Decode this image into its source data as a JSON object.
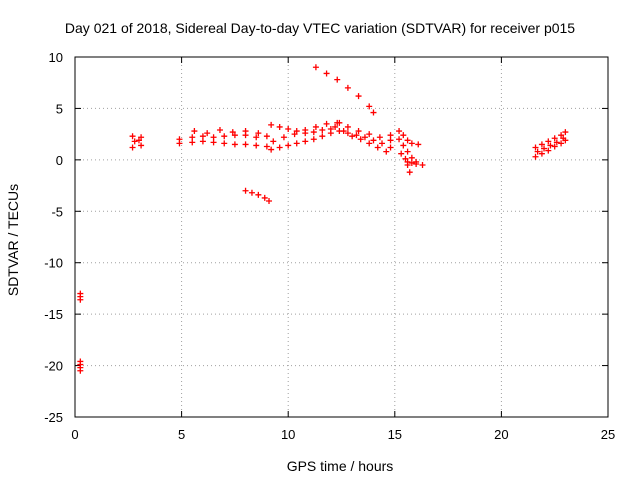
{
  "chart_data": {
    "type": "scatter",
    "title": "Day 021 of 2018, Sidereal Day-to-day VTEC variation (SDTVAR) for receiver p015",
    "xlabel": "GPS time / hours",
    "ylabel": "SDTVAR / TECUs",
    "xlim": [
      0,
      25
    ],
    "ylim": [
      -25,
      10
    ],
    "x_ticks": [
      0,
      5,
      10,
      15,
      20,
      25
    ],
    "y_ticks": [
      -25,
      -20,
      -15,
      -10,
      -5,
      0,
      5,
      10
    ],
    "x_tick_labels": [
      "0",
      "5",
      "10",
      "15",
      "20",
      "25"
    ],
    "y_tick_labels": [
      "-25",
      "-20",
      "-15",
      "-10",
      "-5",
      "0",
      "5",
      "10"
    ],
    "grid": true,
    "grid_style": "dotted",
    "legend": "none",
    "marker": "plus",
    "color": "#ff0000",
    "tracks": [
      {
        "points": [
          [
            0.25,
            -13.0
          ],
          [
            0.25,
            -13.3
          ],
          [
            0.25,
            -13.6
          ]
        ]
      },
      {
        "points": [
          [
            0.25,
            -19.6
          ],
          [
            0.25,
            -19.9
          ],
          [
            0.25,
            -20.2
          ],
          [
            0.25,
            -20.5
          ]
        ]
      },
      {
        "points": [
          [
            2.7,
            1.2
          ],
          [
            2.7,
            2.3
          ],
          [
            3.1,
            2.2
          ],
          [
            3.1,
            1.4
          ],
          [
            2.8,
            1.8
          ],
          [
            3.0,
            1.9
          ]
        ]
      },
      {
        "points": [
          [
            4.9,
            2.0
          ],
          [
            5.5,
            2.2
          ],
          [
            6.0,
            2.3
          ],
          [
            6.5,
            2.2
          ],
          [
            7.0,
            2.3
          ],
          [
            7.5,
            2.4
          ],
          [
            8.0,
            2.4
          ],
          [
            8.5,
            2.2
          ],
          [
            9.0,
            2.3
          ]
        ]
      },
      {
        "points": [
          [
            4.9,
            1.6
          ],
          [
            5.5,
            1.7
          ],
          [
            6.0,
            1.8
          ],
          [
            6.5,
            1.7
          ],
          [
            7.0,
            1.6
          ],
          [
            7.5,
            1.5
          ],
          [
            8.0,
            1.5
          ],
          [
            8.5,
            1.4
          ],
          [
            9.0,
            1.3
          ]
        ]
      },
      {
        "points": [
          [
            5.6,
            2.8
          ],
          [
            6.2,
            2.6
          ],
          [
            6.8,
            2.9
          ],
          [
            7.4,
            2.7
          ],
          [
            8.0,
            2.8
          ],
          [
            8.6,
            2.6
          ]
        ]
      },
      {
        "points": [
          [
            8.0,
            -3.0
          ],
          [
            8.3,
            -3.2
          ],
          [
            8.6,
            -3.4
          ],
          [
            8.9,
            -3.7
          ],
          [
            9.1,
            -4.0
          ]
        ]
      },
      {
        "points": [
          [
            9.2,
            3.4
          ],
          [
            9.6,
            3.2
          ],
          [
            10.0,
            3.0
          ],
          [
            10.4,
            2.8
          ],
          [
            10.8,
            2.6
          ],
          [
            11.2,
            2.7
          ],
          [
            11.6,
            2.9
          ],
          [
            12.0,
            3.0
          ],
          [
            12.4,
            2.8
          ],
          [
            12.8,
            2.6
          ],
          [
            13.2,
            2.4
          ],
          [
            13.6,
            2.2
          ],
          [
            14.0,
            1.9
          ],
          [
            14.4,
            1.6
          ],
          [
            14.8,
            1.2
          ]
        ]
      },
      {
        "points": [
          [
            9.2,
            1.0
          ],
          [
            9.6,
            1.2
          ],
          [
            10.0,
            1.4
          ],
          [
            10.4,
            1.6
          ],
          [
            10.8,
            1.8
          ],
          [
            11.2,
            2.0
          ],
          [
            11.6,
            2.3
          ],
          [
            12.0,
            2.6
          ],
          [
            12.2,
            3.2
          ],
          [
            12.4,
            3.6
          ],
          [
            12.6,
            2.8
          ],
          [
            13.0,
            2.3
          ],
          [
            13.4,
            2.0
          ],
          [
            13.8,
            1.6
          ],
          [
            14.2,
            1.2
          ],
          [
            14.6,
            0.8
          ]
        ]
      },
      {
        "points": [
          [
            9.3,
            1.8
          ],
          [
            9.8,
            2.2
          ],
          [
            10.3,
            2.5
          ],
          [
            10.8,
            2.9
          ],
          [
            11.3,
            3.2
          ],
          [
            11.8,
            3.5
          ],
          [
            12.3,
            3.6
          ],
          [
            12.8,
            3.2
          ],
          [
            13.3,
            2.8
          ],
          [
            13.8,
            2.5
          ],
          [
            14.3,
            2.2
          ],
          [
            14.8,
            1.9
          ]
        ]
      },
      {
        "points": [
          [
            11.3,
            9.0
          ],
          [
            11.8,
            8.4
          ],
          [
            12.3,
            7.8
          ],
          [
            12.8,
            7.0
          ],
          [
            13.3,
            6.2
          ],
          [
            13.8,
            5.2
          ],
          [
            14.0,
            4.6
          ]
        ]
      },
      {
        "points": [
          [
            14.8,
            2.4
          ],
          [
            15.2,
            2.0
          ],
          [
            15.4,
            1.4
          ],
          [
            15.6,
            0.8
          ],
          [
            15.8,
            0.2
          ],
          [
            16.0,
            -0.2
          ]
        ]
      },
      {
        "points": [
          [
            15.2,
            2.8
          ],
          [
            15.4,
            2.4
          ],
          [
            15.6,
            1.9
          ],
          [
            15.8,
            1.6
          ],
          [
            16.1,
            1.5
          ]
        ]
      },
      {
        "points": [
          [
            15.3,
            0.6
          ],
          [
            15.5,
            0.1
          ],
          [
            15.6,
            -0.5
          ],
          [
            15.7,
            -1.2
          ]
        ]
      },
      {
        "points": [
          [
            15.6,
            -0.2
          ],
          [
            15.8,
            -0.3
          ],
          [
            16.0,
            -0.4
          ],
          [
            16.3,
            -0.5
          ]
        ]
      },
      {
        "points": [
          [
            21.6,
            0.3
          ],
          [
            21.9,
            0.6
          ],
          [
            22.2,
            0.9
          ],
          [
            22.5,
            1.3
          ],
          [
            22.8,
            1.6
          ],
          [
            23.0,
            1.9
          ]
        ]
      },
      {
        "points": [
          [
            21.6,
            1.2
          ],
          [
            21.9,
            1.5
          ],
          [
            22.2,
            1.8
          ],
          [
            22.5,
            2.1
          ],
          [
            22.8,
            2.4
          ],
          [
            23.0,
            2.7
          ]
        ]
      },
      {
        "points": [
          [
            21.7,
            0.8
          ],
          [
            22.0,
            1.1
          ],
          [
            22.3,
            1.4
          ],
          [
            22.6,
            1.7
          ],
          [
            22.9,
            2.1
          ]
        ]
      }
    ]
  }
}
